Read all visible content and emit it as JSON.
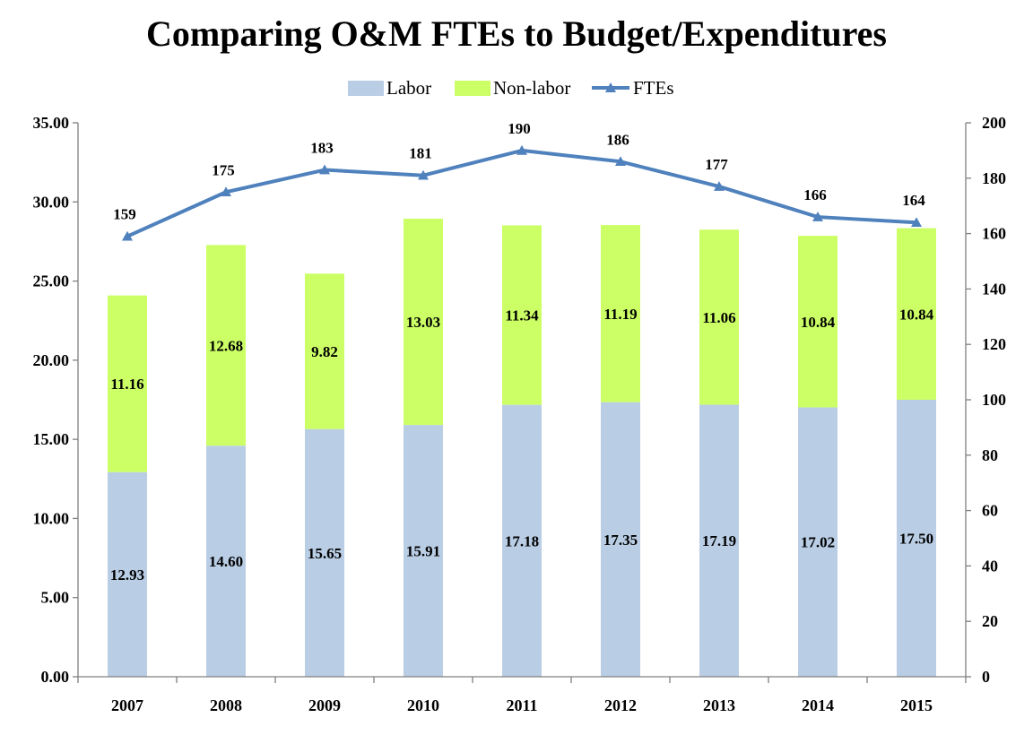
{
  "chart_data": {
    "type": "bar",
    "title": "Comparing O&M FTEs to Budget/Expenditures",
    "categories": [
      "2007",
      "2008",
      "2009",
      "2010",
      "2011",
      "2012",
      "2013",
      "2014",
      "2015"
    ],
    "series": [
      {
        "name": "Labor",
        "type": "bar",
        "stack": "budget",
        "axis": "left",
        "color": "#b9cde5",
        "values": [
          12.93,
          14.6,
          15.65,
          15.91,
          17.18,
          17.35,
          17.19,
          17.02,
          17.5
        ],
        "labels": [
          "12.93",
          "14.60",
          "15.65",
          "15.91",
          "17.18",
          "17.35",
          "17.19",
          "17.02",
          "17.50"
        ]
      },
      {
        "name": "Non-labor",
        "type": "bar",
        "stack": "budget",
        "axis": "left",
        "color": "#ccff66",
        "values": [
          11.16,
          12.68,
          9.82,
          13.03,
          11.34,
          11.19,
          11.06,
          10.84,
          10.84
        ],
        "labels": [
          "11.16",
          "12.68",
          "9.82",
          "13.03",
          "11.34",
          "11.19",
          "11.06",
          "10.84",
          "10.84"
        ]
      },
      {
        "name": "FTEs",
        "type": "line",
        "axis": "right",
        "color": "#4f81bd",
        "values": [
          159,
          175,
          183,
          181,
          190,
          186,
          177,
          166,
          164
        ],
        "labels": [
          "159",
          "175",
          "183",
          "181",
          "190",
          "186",
          "177",
          "166",
          "164"
        ]
      }
    ],
    "y_left": {
      "min": 0,
      "max": 35,
      "step": 5,
      "tick_labels": [
        "0.00",
        "5.00",
        "10.00",
        "15.00",
        "20.00",
        "25.00",
        "30.00",
        "35.00"
      ]
    },
    "y_right": {
      "min": 0,
      "max": 200,
      "step": 20,
      "tick_labels": [
        "0",
        "20",
        "40",
        "60",
        "80",
        "100",
        "120",
        "140",
        "160",
        "180",
        "200"
      ]
    },
    "legend": {
      "position": "top"
    },
    "grid": false
  }
}
